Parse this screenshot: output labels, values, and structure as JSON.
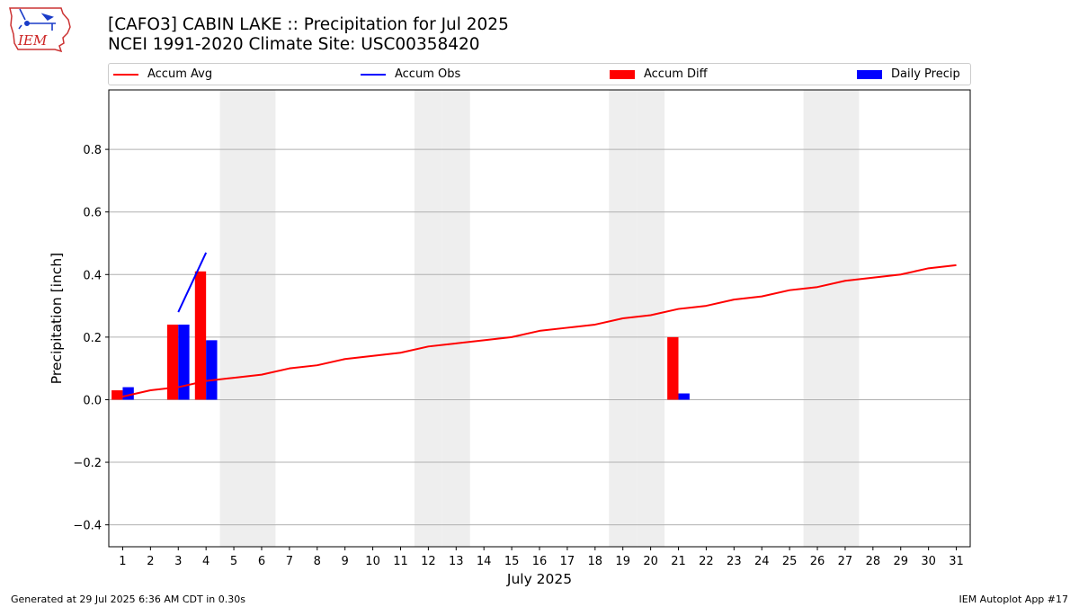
{
  "header": {
    "title_line1": "[CAFO3] CABIN LAKE :: Precipitation for Jul 2025",
    "title_line2": "NCEI 1991-2020 Climate Site: USC00358420"
  },
  "logo": {
    "text": "IEM"
  },
  "legend": {
    "accum_avg": "Accum Avg",
    "accum_obs": "Accum Obs",
    "accum_diff": "Accum Diff",
    "daily_precip": "Daily Precip"
  },
  "colors": {
    "avg": "#ff0000",
    "obs": "#0000ff",
    "diff": "#ff0000",
    "daily": "#0000ff",
    "weekend_band": "#eeeeee",
    "grid": "#b0b0b0"
  },
  "footer": {
    "left": "Generated at 29 Jul 2025 6:36 AM CDT in 0.30s",
    "right": "IEM Autoplot App #17"
  },
  "chart_data": {
    "type": "bar",
    "title": "[CAFO3] CABIN LAKE :: Precipitation for Jul 2025",
    "subtitle": "NCEI 1991-2020 Climate Site: USC00358420",
    "xlabel": "July 2025",
    "ylabel": "Precipitation [inch]",
    "xlim": [
      0.5,
      31.5
    ],
    "ylim": [
      -0.47,
      0.99
    ],
    "yticks": [
      -0.4,
      -0.2,
      0.0,
      0.2,
      0.4,
      0.6,
      0.8
    ],
    "ytick_labels": [
      "−0.4",
      "−0.2",
      "0.0",
      "0.2",
      "0.4",
      "0.6",
      "0.8"
    ],
    "categories": [
      "1",
      "2",
      "3",
      "4",
      "5",
      "6",
      "7",
      "8",
      "9",
      "10",
      "11",
      "12",
      "13",
      "14",
      "15",
      "16",
      "17",
      "18",
      "19",
      "20",
      "21",
      "22",
      "23",
      "24",
      "25",
      "26",
      "27",
      "28",
      "29",
      "30",
      "31"
    ],
    "grid": "horizontal",
    "legend_placement": "top",
    "weekend_days": [
      5,
      6,
      12,
      13,
      19,
      20,
      26,
      27
    ],
    "series": [
      {
        "name": "Accum Avg",
        "kind": "line",
        "x": [
          1,
          2,
          3,
          4,
          5,
          6,
          7,
          8,
          9,
          10,
          11,
          12,
          13,
          14,
          15,
          16,
          17,
          18,
          19,
          20,
          21,
          22,
          23,
          24,
          25,
          26,
          27,
          28,
          29,
          30,
          31
        ],
        "values": [
          0.01,
          0.03,
          0.04,
          0.06,
          0.07,
          0.08,
          0.1,
          0.11,
          0.13,
          0.14,
          0.15,
          0.17,
          0.18,
          0.19,
          0.2,
          0.22,
          0.23,
          0.24,
          0.26,
          0.27,
          0.29,
          0.3,
          0.32,
          0.33,
          0.35,
          0.36,
          0.38,
          0.39,
          0.4,
          0.42,
          0.43
        ]
      },
      {
        "name": "Accum Obs",
        "kind": "line",
        "x": [
          3,
          4
        ],
        "values": [
          0.28,
          0.47
        ]
      },
      {
        "name": "Accum Diff",
        "kind": "bar",
        "x": [
          1,
          3,
          4,
          21
        ],
        "values": [
          0.03,
          0.24,
          0.41,
          0.2
        ]
      },
      {
        "name": "Daily Precip",
        "kind": "bar",
        "x": [
          1,
          3,
          4,
          21
        ],
        "values": [
          0.04,
          0.24,
          0.19,
          0.02
        ]
      }
    ]
  }
}
